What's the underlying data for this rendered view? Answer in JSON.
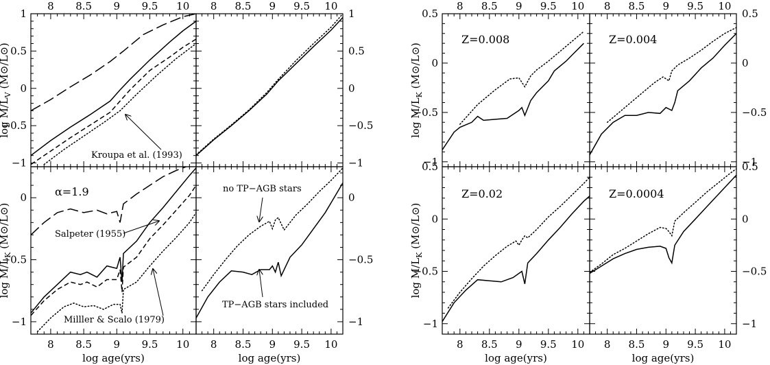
{
  "chart_data": [
    {
      "id": "left-top-left",
      "type": "line",
      "xlim": [
        7.7,
        10.2
      ],
      "ylim": [
        -1.05,
        1.0
      ],
      "xticks": [
        "8",
        "8.5",
        "9",
        "9.5",
        "10"
      ],
      "yticks": [
        "-1",
        "-0.5",
        "0",
        "0.5",
        "1"
      ],
      "ylabel": "log M/L_V (M⊙/L⊙)",
      "annotations": [
        {
          "text": "Kroupa et al. (1993)"
        }
      ],
      "series": [
        {
          "style": "solid",
          "x": [
            7.7,
            8.0,
            8.3,
            8.6,
            8.9,
            9.05,
            9.2,
            9.5,
            9.8,
            10.0,
            10.2
          ],
          "y": [
            -0.9,
            -0.7,
            -0.52,
            -0.35,
            -0.17,
            -0.02,
            0.12,
            0.38,
            0.62,
            0.77,
            0.9
          ]
        },
        {
          "style": "short-dash",
          "x": [
            7.7,
            8.0,
            8.3,
            8.6,
            8.9,
            9.05,
            9.2,
            9.5,
            9.8,
            10.0,
            10.2
          ],
          "y": [
            -1.02,
            -0.84,
            -0.66,
            -0.49,
            -0.32,
            -0.17,
            -0.02,
            0.24,
            0.42,
            0.55,
            0.66
          ]
        },
        {
          "style": "dotted",
          "x": [
            7.9,
            8.2,
            8.5,
            8.8,
            9.05,
            9.3,
            9.6,
            9.9,
            10.2
          ],
          "y": [
            -1.02,
            -0.82,
            -0.64,
            -0.46,
            -0.3,
            -0.08,
            0.17,
            0.4,
            0.6
          ]
        },
        {
          "style": "long-dash",
          "x": [
            7.7,
            8.0,
            8.3,
            8.6,
            8.9,
            9.1,
            9.4,
            9.7,
            10.0,
            10.2
          ],
          "y": [
            -0.3,
            -0.15,
            0.02,
            0.18,
            0.36,
            0.5,
            0.72,
            0.85,
            0.96,
            1.0
          ]
        }
      ]
    },
    {
      "id": "left-top-right",
      "type": "line",
      "xlim": [
        7.7,
        10.2
      ],
      "ylim": [
        -1.05,
        1.0
      ],
      "xticks": [
        "8",
        "8.5",
        "9",
        "9.5",
        "10"
      ],
      "yticks": [
        "-1",
        "-0.5",
        "0",
        "0.5",
        "1"
      ],
      "series": [
        {
          "style": "solid",
          "x": [
            7.7,
            8.0,
            8.3,
            8.6,
            8.9,
            9.1,
            9.4,
            9.7,
            10.0,
            10.2
          ],
          "y": [
            -0.9,
            -0.69,
            -0.5,
            -0.3,
            -0.08,
            0.1,
            0.33,
            0.56,
            0.78,
            0.95
          ]
        },
        {
          "style": "dotted",
          "x": [
            7.7,
            8.0,
            8.3,
            8.6,
            8.9,
            9.1,
            9.4,
            9.7,
            10.0,
            10.2
          ],
          "y": [
            -0.89,
            -0.68,
            -0.49,
            -0.29,
            -0.06,
            0.12,
            0.37,
            0.6,
            0.82,
            1.0
          ]
        }
      ]
    },
    {
      "id": "left-bottom-left",
      "type": "line",
      "xlim": [
        7.7,
        10.2
      ],
      "ylim": [
        -1.1,
        0.25
      ],
      "xticks": [
        "8",
        "8.5",
        "9",
        "9.5",
        "10"
      ],
      "yticks": [
        "-1",
        "-0.5",
        "0"
      ],
      "xlabel": "log age(yrs)",
      "ylabel": "log M/L_K (M⊙/L⊙)",
      "annotations": [
        {
          "text": "α=1.9"
        },
        {
          "text": "Salpeter (1955)"
        },
        {
          "text": "Milller & Scalo (1979)"
        }
      ],
      "series": [
        {
          "style": "solid",
          "x": [
            7.7,
            7.9,
            8.1,
            8.3,
            8.45,
            8.55,
            8.7,
            8.85,
            9.0,
            9.05,
            9.08,
            9.1,
            9.3,
            9.5,
            9.7,
            9.9,
            10.1,
            10.2
          ],
          "y": [
            -0.93,
            -0.8,
            -0.7,
            -0.6,
            -0.62,
            -0.6,
            -0.64,
            -0.55,
            -0.57,
            -0.48,
            -0.68,
            -0.45,
            -0.35,
            -0.2,
            -0.08,
            0.05,
            0.18,
            0.24
          ]
        },
        {
          "style": "short-dash",
          "x": [
            7.7,
            7.9,
            8.1,
            8.3,
            8.45,
            8.55,
            8.7,
            8.85,
            9.0,
            9.05,
            9.08,
            9.1,
            9.3,
            9.5,
            9.7,
            9.9,
            10.1,
            10.2
          ],
          "y": [
            -0.95,
            -0.83,
            -0.74,
            -0.68,
            -0.7,
            -0.68,
            -0.72,
            -0.66,
            -0.66,
            -0.58,
            -0.76,
            -0.56,
            -0.48,
            -0.33,
            -0.22,
            -0.1,
            0.02,
            0.1
          ]
        },
        {
          "style": "dotted",
          "x": [
            7.8,
            8.0,
            8.2,
            8.35,
            8.5,
            8.65,
            8.8,
            8.95,
            9.05,
            9.08,
            9.1,
            9.3,
            9.5,
            9.7,
            9.9,
            10.1,
            10.2
          ],
          "y": [
            -1.08,
            -0.97,
            -0.88,
            -0.85,
            -0.88,
            -0.87,
            -0.9,
            -0.86,
            -0.86,
            -0.93,
            -0.74,
            -0.68,
            -0.55,
            -0.43,
            -0.32,
            -0.2,
            -0.12
          ]
        },
        {
          "style": "long-dash",
          "x": [
            7.7,
            7.9,
            8.1,
            8.3,
            8.5,
            8.7,
            8.85,
            9.0,
            9.05,
            9.1,
            9.3,
            9.5,
            9.7,
            9.9,
            10.05
          ],
          "y": [
            -0.3,
            -0.2,
            -0.12,
            -0.09,
            -0.12,
            -0.1,
            -0.13,
            -0.11,
            -0.2,
            -0.05,
            0.03,
            0.1,
            0.17,
            0.22,
            0.25
          ]
        }
      ]
    },
    {
      "id": "left-bottom-right",
      "type": "line",
      "xlim": [
        7.7,
        10.2
      ],
      "ylim": [
        -1.1,
        0.25
      ],
      "xticks": [
        "8",
        "8.5",
        "9",
        "9.5",
        "10"
      ],
      "yticks": [
        "-1",
        "-0.5",
        "0"
      ],
      "xlabel": "log age(yrs)",
      "annotations": [
        {
          "text": "no TP−AGB stars"
        },
        {
          "text": "TP−AGB stars included"
        }
      ],
      "series": [
        {
          "style": "solid",
          "x": [
            7.7,
            7.9,
            8.1,
            8.3,
            8.5,
            8.65,
            8.8,
            8.95,
            9.0,
            9.05,
            9.1,
            9.15,
            9.3,
            9.5,
            9.7,
            9.9,
            10.05,
            10.2
          ],
          "y": [
            -0.97,
            -0.8,
            -0.68,
            -0.59,
            -0.6,
            -0.62,
            -0.58,
            -0.58,
            -0.55,
            -0.6,
            -0.52,
            -0.63,
            -0.48,
            -0.38,
            -0.25,
            -0.12,
            0.0,
            0.12
          ]
        },
        {
          "style": "dotted",
          "x": [
            7.8,
            8.0,
            8.2,
            8.4,
            8.6,
            8.8,
            8.95,
            9.0,
            9.05,
            9.1,
            9.2,
            9.4,
            9.6,
            9.8,
            10.0,
            10.2
          ],
          "y": [
            -0.75,
            -0.62,
            -0.5,
            -0.39,
            -0.3,
            -0.23,
            -0.19,
            -0.25,
            -0.18,
            -0.16,
            -0.26,
            -0.14,
            -0.05,
            0.05,
            0.14,
            0.24
          ]
        }
      ]
    },
    {
      "id": "right-top-left",
      "type": "line",
      "xlim": [
        7.7,
        10.2
      ],
      "ylim": [
        -1.05,
        0.5
      ],
      "xticks": [
        "8",
        "8.5",
        "9",
        "9.5",
        "10"
      ],
      "yticks": [
        "-1",
        "-0.5",
        "0",
        "0.5"
      ],
      "ylabel": "log M/L_K (M⊙/L⊙)",
      "annotations": [
        {
          "text": "Z=0.008"
        }
      ],
      "series": [
        {
          "style": "solid",
          "x": [
            7.7,
            7.9,
            8.0,
            8.2,
            8.3,
            8.4,
            8.6,
            8.8,
            9.0,
            9.05,
            9.1,
            9.2,
            9.3,
            9.5,
            9.6,
            9.8,
            9.9,
            10.1
          ],
          "y": [
            -0.88,
            -0.7,
            -0.65,
            -0.6,
            -0.54,
            -0.58,
            -0.57,
            -0.56,
            -0.48,
            -0.45,
            -0.53,
            -0.38,
            -0.3,
            -0.18,
            -0.08,
            0.02,
            0.08,
            0.2
          ]
        },
        {
          "style": "dotted",
          "x": [
            8.0,
            8.3,
            8.6,
            8.85,
            9.0,
            9.1,
            9.2,
            9.3,
            9.5,
            9.7,
            9.9,
            10.1
          ],
          "y": [
            -0.62,
            -0.42,
            -0.27,
            -0.16,
            -0.15,
            -0.24,
            -0.13,
            -0.07,
            0.02,
            0.12,
            0.22,
            0.32
          ]
        }
      ]
    },
    {
      "id": "right-top-right",
      "type": "line",
      "xlim": [
        7.7,
        10.2
      ],
      "ylim": [
        -1.05,
        0.5
      ],
      "xticks": [
        "8",
        "8.5",
        "9",
        "9.5",
        "10"
      ],
      "yticks": [
        "-1",
        "-0.5",
        "0",
        "0.5"
      ],
      "annotations": [
        {
          "text": "Z=0.004"
        }
      ],
      "series": [
        {
          "style": "solid",
          "x": [
            7.7,
            7.9,
            8.1,
            8.3,
            8.5,
            8.7,
            8.9,
            9.0,
            9.1,
            9.15,
            9.2,
            9.4,
            9.6,
            9.8,
            10.0,
            10.2
          ],
          "y": [
            -0.93,
            -0.72,
            -0.6,
            -0.53,
            -0.53,
            -0.5,
            -0.51,
            -0.45,
            -0.48,
            -0.4,
            -0.28,
            -0.18,
            -0.05,
            0.05,
            0.18,
            0.3
          ]
        },
        {
          "style": "dotted",
          "x": [
            8.0,
            8.3,
            8.6,
            8.8,
            8.95,
            9.05,
            9.1,
            9.2,
            9.4,
            9.6,
            9.8,
            10.0,
            10.2
          ],
          "y": [
            -0.6,
            -0.45,
            -0.3,
            -0.2,
            -0.14,
            -0.18,
            -0.08,
            -0.02,
            0.05,
            0.13,
            0.22,
            0.3,
            0.36
          ]
        }
      ]
    },
    {
      "id": "right-bottom-left",
      "type": "line",
      "xlim": [
        7.7,
        10.2
      ],
      "ylim": [
        -1.1,
        0.5
      ],
      "xticks": [
        "8",
        "8.5",
        "9",
        "9.5",
        "10"
      ],
      "yticks": [
        "-1",
        "-0.5",
        "0",
        "0.5"
      ],
      "xlabel": "log age(yrs)",
      "ylabel": "log M/L_K (M⊙/L⊙)",
      "annotations": [
        {
          "text": "Z=0.02"
        }
      ],
      "series": [
        {
          "style": "solid",
          "x": [
            7.7,
            7.9,
            8.1,
            8.3,
            8.5,
            8.7,
            8.9,
            9.0,
            9.05,
            9.1,
            9.15,
            9.3,
            9.5,
            9.7,
            9.9,
            10.1,
            10.2
          ],
          "y": [
            -0.98,
            -0.8,
            -0.68,
            -0.58,
            -0.59,
            -0.6,
            -0.56,
            -0.52,
            -0.5,
            -0.62,
            -0.42,
            -0.33,
            -0.2,
            -0.08,
            0.05,
            0.17,
            0.22
          ]
        },
        {
          "style": "dotted",
          "x": [
            7.8,
            8.0,
            8.2,
            8.4,
            8.6,
            8.8,
            8.95,
            9.0,
            9.05,
            9.1,
            9.15,
            9.3,
            9.5,
            9.7,
            9.9,
            10.1,
            10.2
          ],
          "y": [
            -0.85,
            -0.7,
            -0.57,
            -0.45,
            -0.35,
            -0.26,
            -0.21,
            -0.25,
            -0.2,
            -0.16,
            -0.18,
            -0.1,
            0.02,
            0.12,
            0.23,
            0.34,
            0.4
          ]
        }
      ]
    },
    {
      "id": "right-bottom-right",
      "type": "line",
      "xlim": [
        7.7,
        10.2
      ],
      "ylim": [
        -1.1,
        0.5
      ],
      "xticks": [
        "8",
        "8.5",
        "9",
        "9.5",
        "10"
      ],
      "yticks": [
        "-1",
        "-0.5",
        "0",
        "0.5"
      ],
      "xlabel": "log age(yrs)",
      "annotations": [
        {
          "text": "Z=0.0004"
        }
      ],
      "series": [
        {
          "style": "solid",
          "x": [
            7.7,
            7.9,
            8.1,
            8.3,
            8.5,
            8.7,
            8.9,
            9.0,
            9.05,
            9.1,
            9.15,
            9.3,
            9.5,
            9.7,
            9.9,
            10.1,
            10.2
          ],
          "y": [
            -0.52,
            -0.45,
            -0.38,
            -0.33,
            -0.29,
            -0.27,
            -0.26,
            -0.28,
            -0.37,
            -0.42,
            -0.25,
            -0.12,
            0.0,
            0.12,
            0.24,
            0.36,
            0.42
          ]
        },
        {
          "style": "dotted",
          "x": [
            7.7,
            7.9,
            8.1,
            8.3,
            8.5,
            8.7,
            8.9,
            9.0,
            9.05,
            9.1,
            9.15,
            9.3,
            9.5,
            9.7,
            9.9,
            10.1,
            10.2
          ],
          "y": [
            -0.51,
            -0.43,
            -0.34,
            -0.28,
            -0.21,
            -0.14,
            -0.08,
            -0.09,
            -0.12,
            -0.16,
            -0.02,
            0.06,
            0.16,
            0.26,
            0.35,
            0.44,
            0.48
          ]
        }
      ]
    }
  ]
}
